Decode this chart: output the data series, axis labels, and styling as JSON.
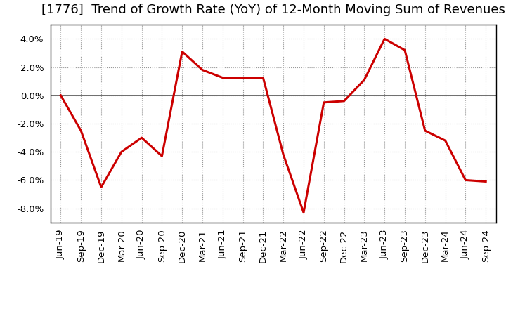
{
  "title": "[1776]  Trend of Growth Rate (YoY) of 12-Month Moving Sum of Revenues",
  "labels": [
    "Jun-19",
    "Sep-19",
    "Dec-19",
    "Mar-20",
    "Jun-20",
    "Sep-20",
    "Dec-20",
    "Mar-21",
    "Jun-21",
    "Sep-21",
    "Dec-21",
    "Mar-22",
    "Jun-22",
    "Sep-22",
    "Dec-22",
    "Mar-23",
    "Jun-23",
    "Sep-23",
    "Dec-23",
    "Mar-24",
    "Jun-24",
    "Sep-24"
  ],
  "values": [
    0.0,
    -2.5,
    -6.5,
    -4.0,
    -3.0,
    -4.3,
    3.1,
    1.8,
    1.25,
    1.25,
    1.25,
    -4.2,
    -8.3,
    -0.5,
    -0.4,
    1.1,
    4.0,
    3.2,
    -2.5,
    -3.2,
    -6.0,
    -6.1
  ],
  "line_color": "#cc0000",
  "line_width": 2.2,
  "background_color": "#ffffff",
  "grid_color": "#999999",
  "zero_line_color": "#555555",
  "ylim": [
    -9.0,
    5.0
  ],
  "yticks": [
    -8.0,
    -6.0,
    -4.0,
    -2.0,
    0.0,
    2.0,
    4.0
  ],
  "title_fontsize": 13,
  "tick_fontsize": 9.5,
  "spine_color": "#000000"
}
